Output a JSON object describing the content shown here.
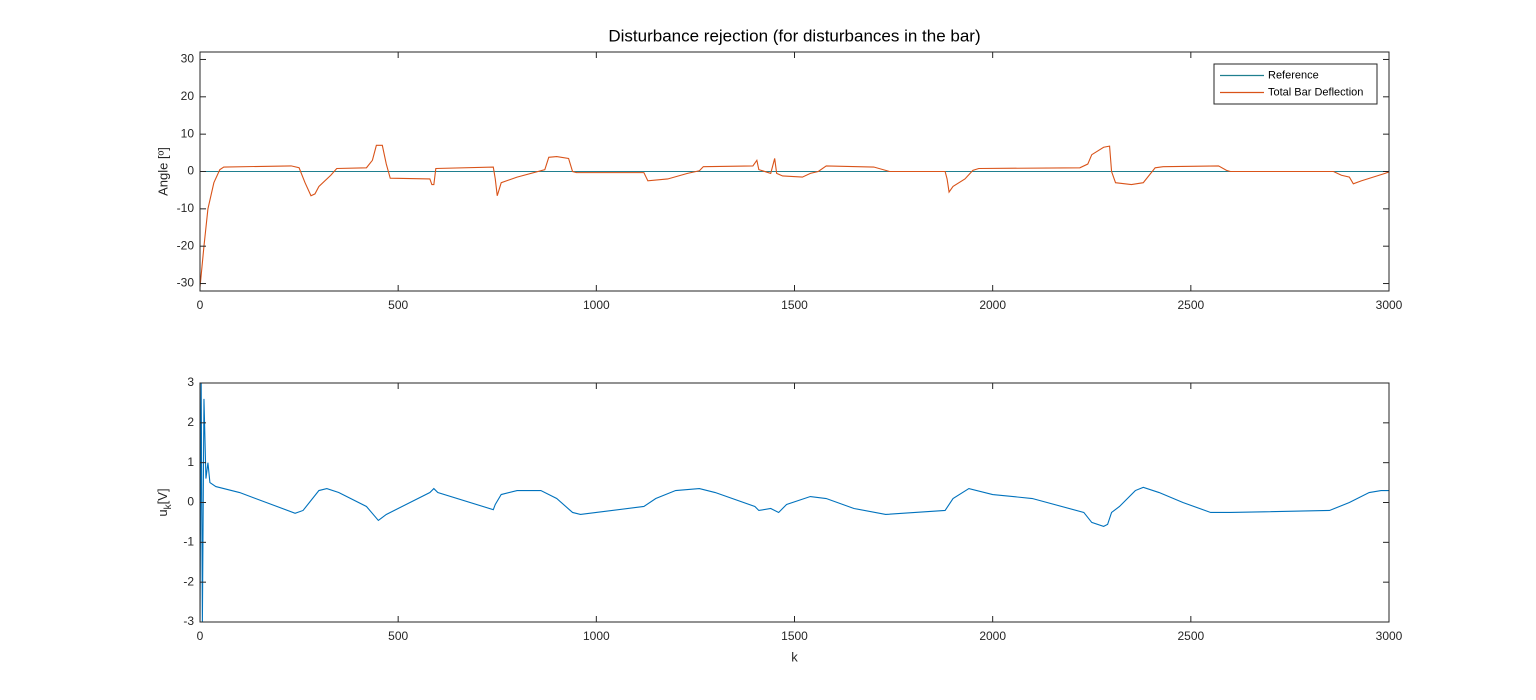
{
  "chart_data": [
    {
      "type": "line",
      "title": "Disturbance rejection (for disturbances in the bar)",
      "y_label": "Angle [º]",
      "xlim": [
        0,
        3000
      ],
      "xticks": [
        0,
        500,
        1000,
        1500,
        2000,
        2500,
        3000
      ],
      "ylim": [
        -32,
        32
      ],
      "yticks": [
        -30,
        -20,
        -10,
        0,
        10,
        20,
        30
      ],
      "grid": false,
      "legend": "northeast",
      "series": [
        {
          "name": "Reference",
          "color": "#1f7f8f",
          "x": [
            0,
            3000
          ],
          "values": [
            0,
            0
          ]
        },
        {
          "name": "Total Bar Deflection",
          "color": "#d95319",
          "x": [
            0,
            10,
            20,
            35,
            50,
            60,
            230,
            250,
            265,
            280,
            290,
            300,
            330,
            345,
            420,
            435,
            445,
            460,
            470,
            480,
            580,
            585,
            590,
            595,
            740,
            745,
            750,
            760,
            800,
            870,
            880,
            900,
            930,
            940,
            950,
            1120,
            1130,
            1180,
            1230,
            1260,
            1270,
            1395,
            1405,
            1410,
            1440,
            1450,
            1455,
            1470,
            1520,
            1540,
            1560,
            1580,
            1700,
            1740,
            1880,
            1885,
            1890,
            1900,
            1930,
            1950,
            1965,
            2220,
            2240,
            2250,
            2280,
            2295,
            2300,
            2310,
            2350,
            2380,
            2410,
            2430,
            2570,
            2590,
            2600,
            2860,
            2880,
            2900,
            2910,
            2930,
            2960,
            2990,
            3000
          ],
          "values": [
            -31,
            -20,
            -10,
            -3,
            0.5,
            1.2,
            1.5,
            1.0,
            -3,
            -6.5,
            -6,
            -4,
            -1,
            0.8,
            1.0,
            3,
            7,
            7,
            2,
            -1.8,
            -2,
            -3.5,
            -3.5,
            0.8,
            1.2,
            -2,
            -6.5,
            -3,
            -1.5,
            0.5,
            3.8,
            4,
            3.5,
            0,
            -0.3,
            -0.3,
            -2.5,
            -2,
            -0.5,
            0.2,
            1.3,
            1.5,
            3,
            0.5,
            -0.5,
            3.5,
            -0.5,
            -1.2,
            -1.5,
            -0.5,
            0,
            1.5,
            1.2,
            0,
            0,
            -2,
            -5.5,
            -4,
            -2,
            0.3,
            0.8,
            1.0,
            2,
            4.5,
            6.5,
            6.8,
            0,
            -3,
            -3.5,
            -3,
            1,
            1.3,
            1.5,
            0.3,
            0,
            0,
            -1,
            -1.5,
            -3.3,
            -2.5,
            -1.5,
            -0.5,
            -0.1
          ]
        }
      ]
    },
    {
      "type": "line",
      "x_label": "k",
      "y_label": {
        "base": "u",
        "subscript": "k",
        "unit": "[V]"
      },
      "xlim": [
        0,
        3000
      ],
      "xticks": [
        0,
        500,
        1000,
        1500,
        2000,
        2500,
        3000
      ],
      "ylim": [
        -3,
        3
      ],
      "yticks": [
        -3,
        -2,
        -1,
        0,
        1,
        2,
        3
      ],
      "grid": false,
      "series": [
        {
          "color": "#0072bd",
          "x": [
            0,
            3,
            6,
            10,
            15,
            20,
            25,
            40,
            100,
            240,
            260,
            300,
            320,
            350,
            420,
            450,
            470,
            580,
            590,
            600,
            740,
            745,
            760,
            800,
            860,
            900,
            940,
            960,
            1000,
            1120,
            1150,
            1200,
            1260,
            1300,
            1400,
            1410,
            1440,
            1460,
            1480,
            1540,
            1580,
            1650,
            1730,
            1880,
            1900,
            1940,
            2000,
            2100,
            2230,
            2250,
            2280,
            2290,
            2300,
            2320,
            2360,
            2380,
            2420,
            2480,
            2550,
            2600,
            2850,
            2900,
            2950,
            2980,
            3000
          ],
          "values": [
            -3,
            3,
            -3,
            2.6,
            0.6,
            1.0,
            0.5,
            0.4,
            0.25,
            -0.27,
            -0.2,
            0.3,
            0.35,
            0.25,
            -0.1,
            -0.45,
            -0.3,
            0.25,
            0.35,
            0.25,
            -0.18,
            -0.05,
            0.2,
            0.3,
            0.3,
            0.1,
            -0.25,
            -0.3,
            -0.25,
            -0.1,
            0.1,
            0.3,
            0.35,
            0.25,
            -0.1,
            -0.2,
            -0.15,
            -0.25,
            -0.05,
            0.15,
            0.1,
            -0.15,
            -0.3,
            -0.2,
            0.1,
            0.35,
            0.2,
            0.1,
            -0.25,
            -0.5,
            -0.6,
            -0.55,
            -0.25,
            -0.1,
            0.3,
            0.38,
            0.25,
            0.0,
            -0.25,
            -0.25,
            -0.2,
            0.0,
            0.25,
            0.3,
            0.3
          ]
        }
      ]
    }
  ]
}
